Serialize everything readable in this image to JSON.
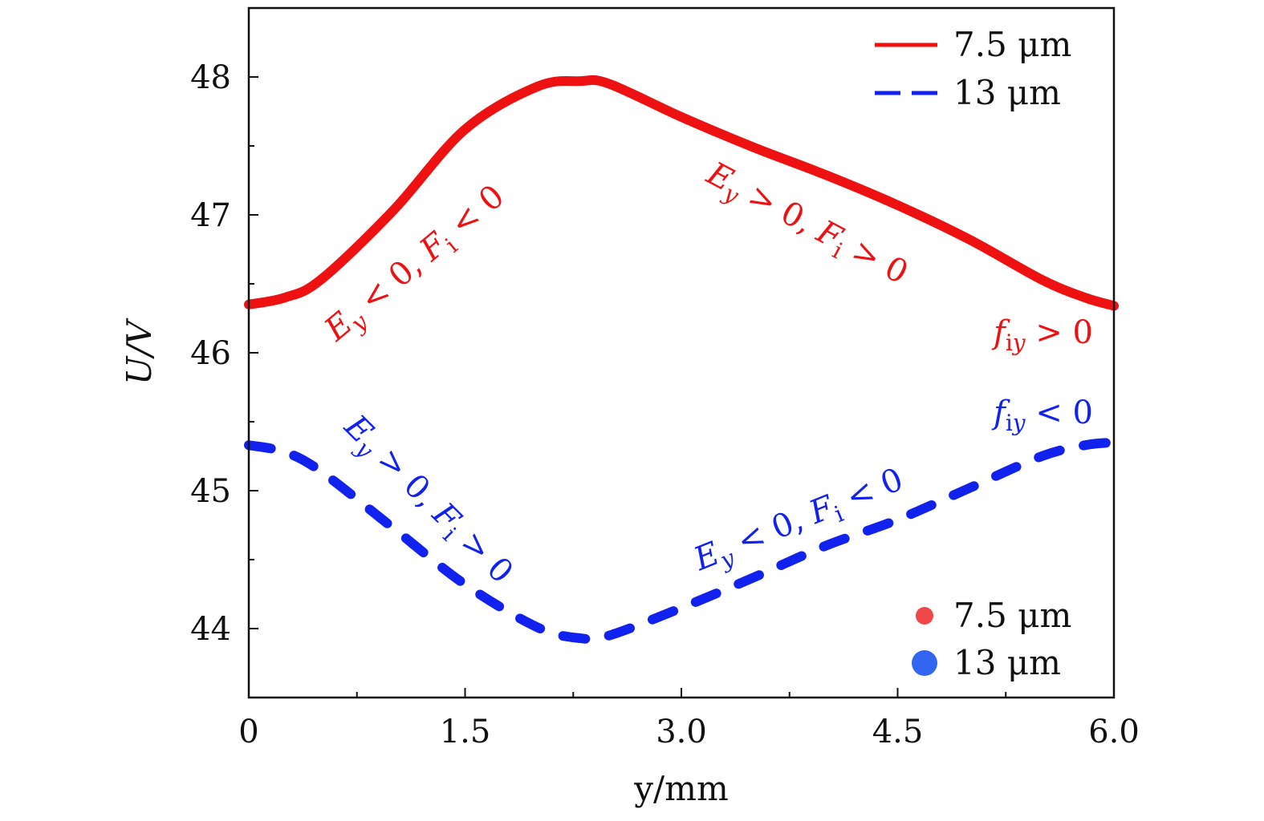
{
  "chart_data": {
    "type": "line",
    "title": "",
    "xlabel": "y/mm",
    "ylabel": "U/V",
    "xlim": [
      0,
      6.0
    ],
    "ylim": [
      43.5,
      48.5
    ],
    "xticks": [
      0,
      1.5,
      3.0,
      4.5,
      6.0
    ],
    "xtick_labels": [
      "0",
      "1.5",
      "3.0",
      "4.5",
      "6.0"
    ],
    "yticks": [
      44,
      45,
      46,
      47,
      48
    ],
    "ytick_labels": [
      "44",
      "45",
      "46",
      "47",
      "48"
    ],
    "grid": false,
    "colors": {
      "red": "#ee1111",
      "blue": "#1122ee",
      "red_marker": "#f04848",
      "blue_marker": "#3366f0"
    },
    "series": [
      {
        "name": "7.5 μm",
        "style": "solid",
        "color": "#ee1111",
        "x": [
          0,
          0.25,
          0.5,
          1.0,
          1.5,
          2.0,
          2.3,
          2.5,
          3.0,
          3.5,
          4.0,
          4.5,
          5.0,
          5.5,
          5.8,
          6.0
        ],
        "y": [
          46.35,
          46.4,
          46.53,
          47.03,
          47.62,
          47.93,
          47.97,
          47.95,
          47.71,
          47.49,
          47.29,
          47.07,
          46.82,
          46.53,
          46.4,
          46.34
        ]
      },
      {
        "name": "13 μm",
        "style": "dashed",
        "color": "#1122ee",
        "x": [
          0,
          0.25,
          0.5,
          1.0,
          1.5,
          2.0,
          2.3,
          2.5,
          3.0,
          3.5,
          4.0,
          4.5,
          5.0,
          5.5,
          5.8,
          6.0
        ],
        "y": [
          45.33,
          45.28,
          45.14,
          44.73,
          44.32,
          44.01,
          43.93,
          43.95,
          44.15,
          44.37,
          44.6,
          44.79,
          45.02,
          45.25,
          45.33,
          45.35
        ]
      }
    ],
    "legend_lines": {
      "placement": "top-right",
      "entries": [
        "7.5 μm",
        "13 μm"
      ]
    },
    "legend_markers": {
      "placement": "bottom-right",
      "entries": [
        "7.5 μm",
        "13 μm"
      ]
    },
    "annotations": [
      {
        "id": "red-left",
        "color": "red",
        "text": "Ey < 0, Fi < 0",
        "parts": [
          [
            "E",
            "i"
          ],
          [
            "y",
            "si"
          ],
          [
            " < 0, ",
            ""
          ],
          [
            "F",
            "i"
          ],
          [
            "i",
            "s"
          ],
          [
            " < 0",
            ""
          ]
        ]
      },
      {
        "id": "red-right",
        "color": "red",
        "text": "Ey > 0, Fi > 0",
        "parts": [
          [
            "E",
            "i"
          ],
          [
            "y",
            "si"
          ],
          [
            " > 0, ",
            ""
          ],
          [
            "F",
            "i"
          ],
          [
            "i",
            "s"
          ],
          [
            " > 0",
            ""
          ]
        ]
      },
      {
        "id": "red-fiy",
        "color": "red",
        "text": "fiy > 0",
        "parts": [
          [
            "f",
            "i"
          ],
          [
            "i",
            "s"
          ],
          [
            "y",
            "si"
          ],
          [
            " > 0",
            ""
          ]
        ]
      },
      {
        "id": "blue-left",
        "color": "blue",
        "text": "Ey > 0, Fi > 0",
        "parts": [
          [
            "E",
            "i"
          ],
          [
            "y",
            "si"
          ],
          [
            " > 0, ",
            ""
          ],
          [
            "F",
            "i"
          ],
          [
            "i",
            "s"
          ],
          [
            " > 0",
            ""
          ]
        ]
      },
      {
        "id": "blue-right",
        "color": "blue",
        "text": "Ey < 0, Fi < 0",
        "parts": [
          [
            "E",
            "i"
          ],
          [
            "y",
            "si"
          ],
          [
            " < 0, ",
            ""
          ],
          [
            "F",
            "i"
          ],
          [
            "i",
            "s"
          ],
          [
            " < 0",
            ""
          ]
        ]
      },
      {
        "id": "blue-fiy",
        "color": "blue",
        "text": "fiy < 0",
        "parts": [
          [
            "f",
            "i"
          ],
          [
            "i",
            "s"
          ],
          [
            "y",
            "si"
          ],
          [
            " < 0",
            ""
          ]
        ]
      }
    ]
  }
}
